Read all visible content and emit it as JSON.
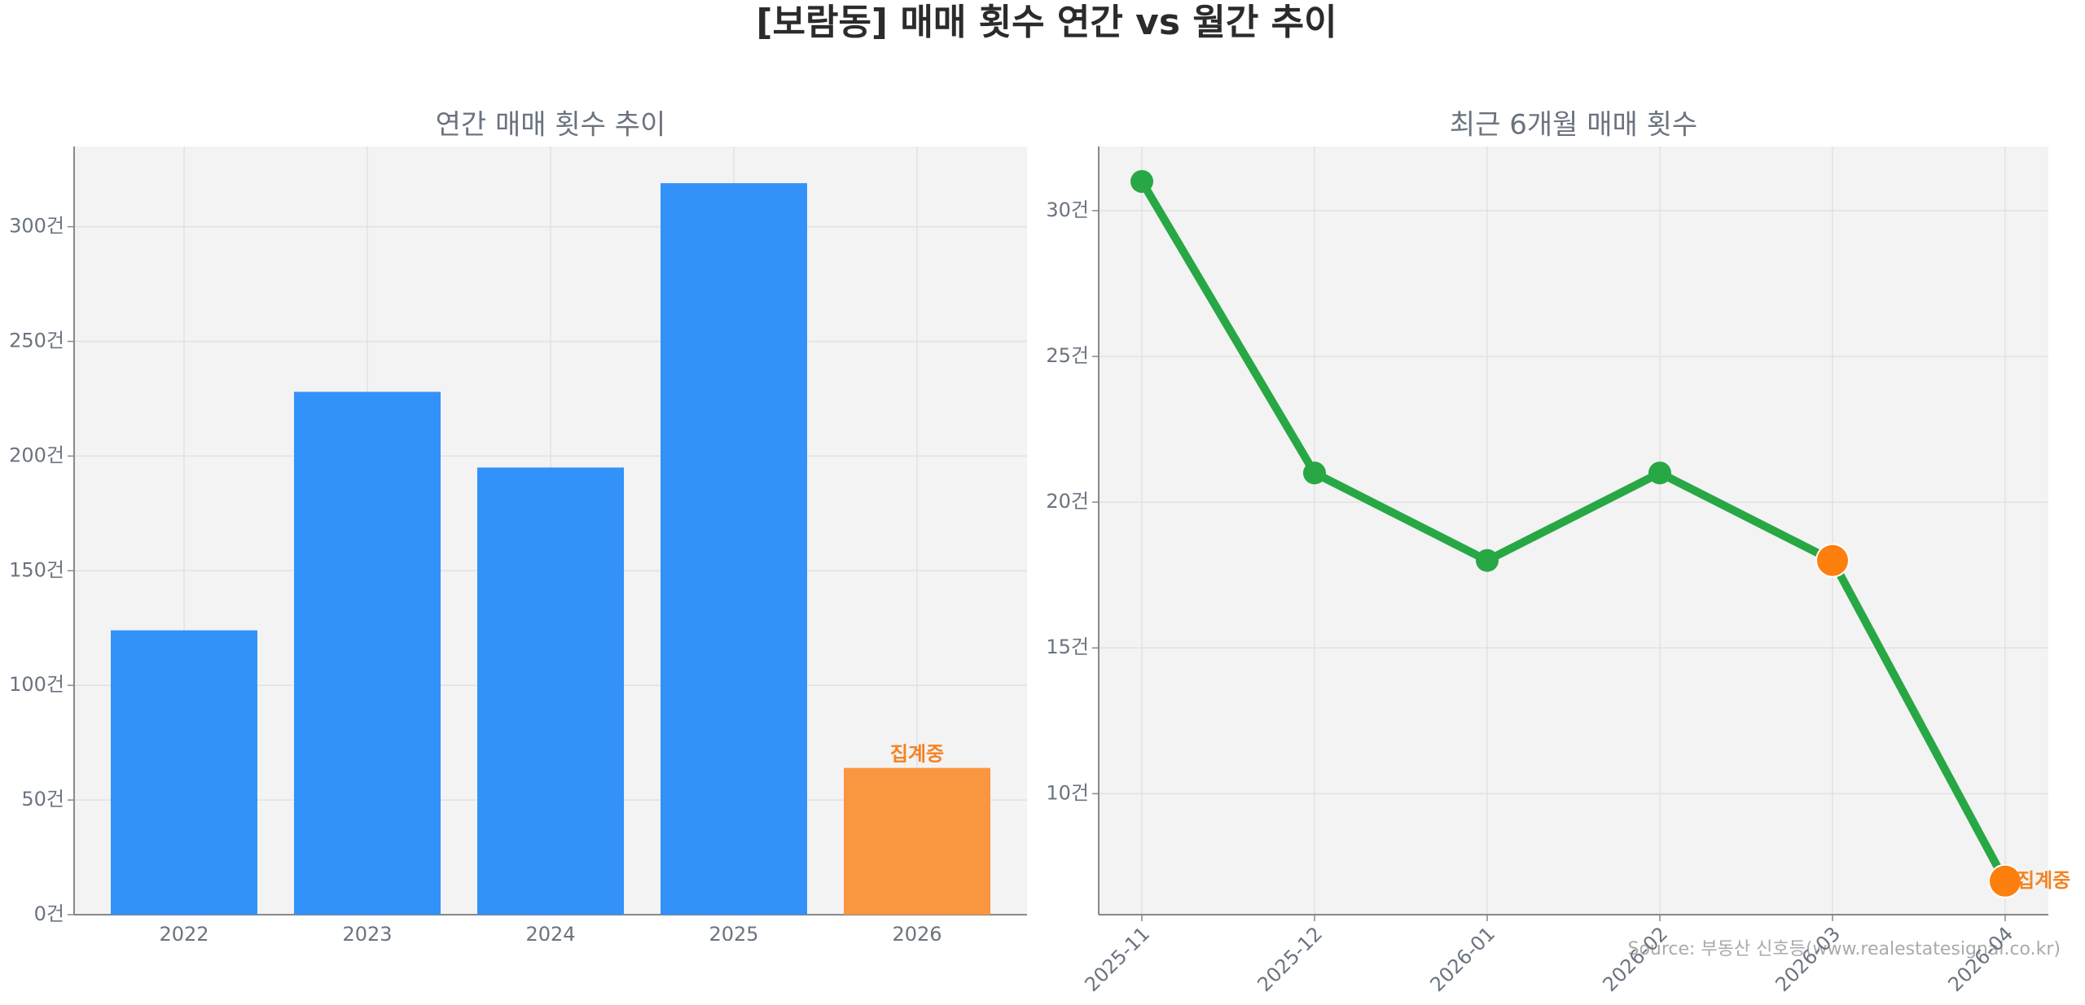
{
  "title": "[보람동] 매매 횟수 연간 vs 월간 추이",
  "source": "Source: 부동산 신호등(www.realestatesignal.co.kr)",
  "chart_data": [
    {
      "type": "bar",
      "title": "연간 매매 횟수 추이",
      "categories": [
        "2022",
        "2023",
        "2024",
        "2025",
        "2026"
      ],
      "values": [
        124,
        228,
        195,
        319,
        64
      ],
      "colors": [
        "#3292f9",
        "#3292f9",
        "#3292f9",
        "#3292f9",
        "#f9963f"
      ],
      "annotation": "집계중",
      "annotation_color": "#f58220",
      "ylim": [
        0,
        335
      ],
      "yticks": [
        {
          "value": 0,
          "label": "0건"
        },
        {
          "value": 50,
          "label": "50건"
        },
        {
          "value": 100,
          "label": "100건"
        },
        {
          "value": 150,
          "label": "150건"
        },
        {
          "value": 200,
          "label": "200건"
        },
        {
          "value": 250,
          "label": "250건"
        },
        {
          "value": 300,
          "label": "300건"
        }
      ],
      "grid": true
    },
    {
      "type": "line",
      "title": "최근 6개월 매매 횟수",
      "categories": [
        "2025-11",
        "2025-12",
        "2026-01",
        "2026-02",
        "2026-03",
        "2026-04"
      ],
      "values": [
        31,
        21,
        18,
        21,
        18,
        7
      ],
      "color": "#28a745",
      "point_colors": [
        "#28a745",
        "#28a745",
        "#28a745",
        "#28a745",
        "#fd7f0e",
        "#fd7f0e"
      ],
      "annotation": "집계중",
      "annotation_color": "#f58220",
      "ylim": [
        5.85,
        32.2
      ],
      "yticks": [
        {
          "value": 10,
          "label": "10건"
        },
        {
          "value": 15,
          "label": "15건"
        },
        {
          "value": 20,
          "label": "20건"
        },
        {
          "value": 25,
          "label": "25건"
        },
        {
          "value": 30,
          "label": "30건"
        }
      ],
      "grid": true
    }
  ]
}
